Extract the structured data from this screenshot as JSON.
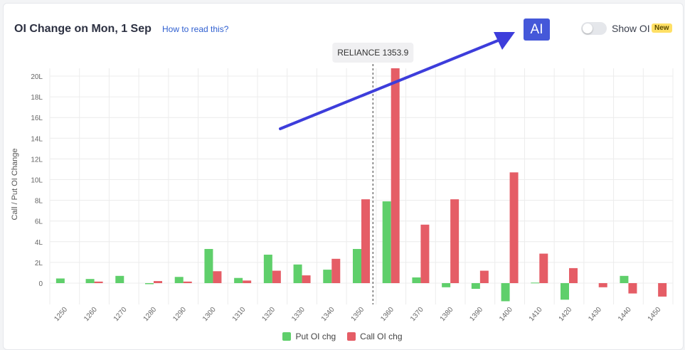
{
  "header": {
    "title": "OI Change on Mon, 1 Sep",
    "how_to_read": "How to read this?",
    "ai_label": "AI",
    "show_oi_label": "Show OI",
    "new_badge": "New"
  },
  "colors": {
    "put": "#5fcf6b",
    "call": "#e55d66",
    "arrow": "#3d3ddb",
    "grid": "#ececec"
  },
  "chart_data": {
    "type": "bar",
    "ylabel": "Call / Put OI Change",
    "ylim": [
      -2,
      20.5
    ],
    "y_ticks": [
      0,
      2,
      4,
      6,
      8,
      10,
      12,
      14,
      16,
      18,
      20
    ],
    "y_tick_labels": [
      "0",
      "2L",
      "4L",
      "6L",
      "8L",
      "10L",
      "12L",
      "14L",
      "16L",
      "18L",
      "20L"
    ],
    "categories": [
      "1250",
      "1260",
      "1270",
      "1280",
      "1290",
      "1300",
      "1310",
      "1320",
      "1330",
      "1340",
      "1350",
      "1360",
      "1370",
      "1380",
      "1390",
      "1400",
      "1410",
      "1420",
      "1430",
      "1440",
      "1450"
    ],
    "series": [
      {
        "name": "Put OI chg",
        "values": [
          0.45,
          0.4,
          0.7,
          -0.1,
          0.6,
          3.3,
          0.5,
          2.75,
          1.8,
          1.3,
          3.3,
          7.9,
          0.55,
          -0.4,
          -0.55,
          -1.75,
          0.05,
          -1.6,
          0,
          0.7,
          0
        ]
      },
      {
        "name": "Call OI chg",
        "values": [
          0,
          0.15,
          0,
          0.2,
          0.15,
          1.15,
          0.25,
          1.2,
          0.75,
          2.35,
          8.1,
          20.8,
          5.65,
          8.1,
          1.2,
          10.7,
          2.85,
          1.45,
          -0.4,
          -1.0,
          -1.3
        ]
      }
    ],
    "spot_marker": {
      "label": "RELIANCE 1353.9",
      "value": 1353.9
    },
    "legend": [
      "Put OI chg",
      "Call OI chg"
    ],
    "legend_position": "bottom",
    "grid": true
  }
}
